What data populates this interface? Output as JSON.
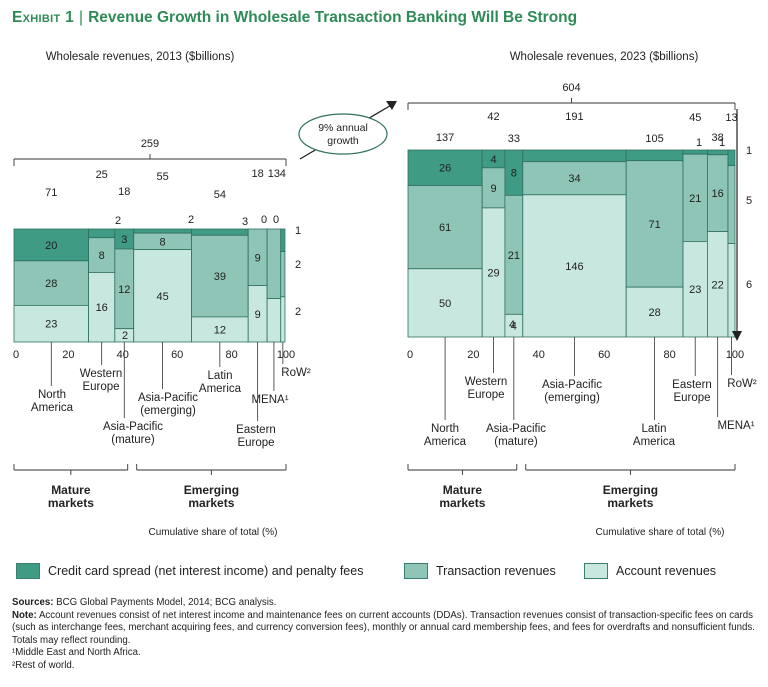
{
  "title": {
    "exhibit": "Exhibit 1",
    "text": "Revenue Growth in Wholesale Transaction Banking Will Be Strong"
  },
  "colors": {
    "credit": "#3f9b84",
    "transaction": "#8ec5b6",
    "account": "#c7e7df",
    "stroke": "#2f6f60",
    "accent": "#2e8b57"
  },
  "growth_label": [
    "9% annual",
    "growth"
  ],
  "legend": [
    {
      "key": "credit",
      "label": "Credit card spread (net interest income) and penalty fees"
    },
    {
      "key": "transaction",
      "label": "Transaction revenues"
    },
    {
      "key": "account",
      "label": "Account revenues"
    }
  ],
  "notes": {
    "sources_label": "Sources:",
    "sources_text": "BCG Global Payments Model, 2014; BCG analysis.",
    "note_label": "Note:",
    "note_text": "Account revenues consist of net interest income and maintenance fees on current accounts (DDAs). Transaction revenues consist of transaction-specific fees on cards (such as interchange fees, merchant acquiring fees, and currency conversion fees), monthly or annual card membership fees, and fees for overdrafts and nonsufficient funds. Totals may reflect rounding.",
    "footnote1": "¹Middle East and North Africa.",
    "footnote2": "²Rest of world."
  },
  "chart_data": [
    {
      "type": "marimekko",
      "title": "Wholesale revenues, 2013 ($billions)",
      "total": 259,
      "xlabel": "Cumulative share of total (%)",
      "xticks": [
        "0",
        "20",
        "40",
        "60",
        "80",
        "100"
      ],
      "segments": [
        "credit",
        "transaction",
        "account"
      ],
      "groups": [
        {
          "label": "Mature\nmarkets",
          "regions": [
            0,
            1,
            2
          ]
        },
        {
          "label": "Emerging\nmarkets",
          "regions": [
            3,
            4,
            5,
            6,
            7
          ]
        }
      ],
      "regions": [
        {
          "name": "North\nAmerica",
          "total": 71,
          "credit": 20,
          "transaction": 28,
          "account": 23
        },
        {
          "name": "Western\nEurope",
          "total": 25,
          "credit": 2,
          "transaction": 8,
          "account": 16
        },
        {
          "name": "Asia-Pacific\n(mature)",
          "total": 18,
          "credit": 3,
          "transaction": 12,
          "account": 2
        },
        {
          "name": "Asia-Pacific\n(emerging)",
          "total": 55,
          "credit": 2,
          "transaction": 8,
          "account": 45
        },
        {
          "name": "Latin\nAmerica",
          "total": 54,
          "credit": 3,
          "transaction": 39,
          "account": 12
        },
        {
          "name": "Eastern\nEurope",
          "total": 18,
          "credit": 0,
          "transaction": 9,
          "account": 9
        },
        {
          "name": "MENA¹",
          "total": 13,
          "credit": 0,
          "transaction": 8,
          "account": 5
        },
        {
          "name": "RoW²",
          "total": 4,
          "credit": 1,
          "transaction": 2,
          "account": 2
        }
      ]
    },
    {
      "type": "marimekko",
      "title": "Wholesale revenues, 2023 ($billions)",
      "total": 604,
      "xlabel": "Cumulative share of total (%)",
      "xticks": [
        "0",
        "20",
        "40",
        "60",
        "80",
        "100"
      ],
      "segments": [
        "credit",
        "transaction",
        "account"
      ],
      "groups": [
        {
          "label": "Mature\nmarkets",
          "regions": [
            0,
            1,
            2
          ]
        },
        {
          "label": "Emerging\nmarkets",
          "regions": [
            3,
            4,
            5,
            6,
            7
          ]
        }
      ],
      "regions": [
        {
          "name": "North\nAmerica",
          "total": 137,
          "credit": 26,
          "transaction": 61,
          "account": 50
        },
        {
          "name": "Western\nEurope",
          "total": 42,
          "credit": 4,
          "transaction": 9,
          "account": 29
        },
        {
          "name": "Asia-Pacific\n(mature)",
          "total": 33,
          "credit": 8,
          "transaction": 21,
          "account": 4
        },
        {
          "name": "Asia-Pacific\n(emerging)",
          "total": 191,
          "credit": 12,
          "transaction": 34,
          "account": 146
        },
        {
          "name": "Latin\nAmerica",
          "total": 105,
          "credit": 6,
          "transaction": 71,
          "account": 28
        },
        {
          "name": "Eastern\nEurope",
          "total": 45,
          "credit": 1,
          "transaction": 21,
          "account": 23
        },
        {
          "name": "MENA¹",
          "total": 38,
          "credit": 1,
          "transaction": 16,
          "account": 22
        },
        {
          "name": "RoW²",
          "total": 13,
          "credit": 1,
          "transaction": 5,
          "account": 6
        }
      ]
    }
  ]
}
